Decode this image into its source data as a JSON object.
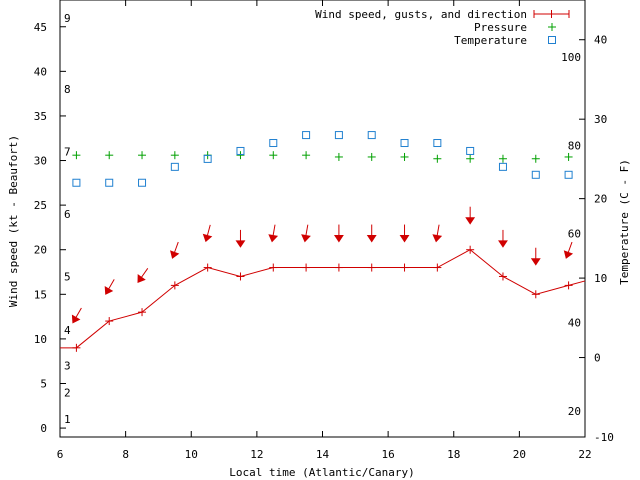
{
  "chart_data": {
    "type": "line",
    "xlabel": "Local time (Atlantic/Canary)",
    "ylabel": "Wind speed (kt - Beaufort)",
    "y2label": "Temperature (C - F)",
    "xlim": [
      6,
      22
    ],
    "ylim": [
      -1,
      48
    ],
    "y2lim": [
      -10,
      45
    ],
    "x_ticks": [
      6,
      8,
      10,
      12,
      14,
      16,
      18,
      20,
      22
    ],
    "y_ticks": [
      0,
      5,
      10,
      15,
      20,
      25,
      30,
      35,
      40,
      45
    ],
    "y2_ticks": [
      -10,
      0,
      10,
      20,
      30,
      40
    ],
    "beaufort_labels": [
      {
        "label": "1",
        "y": 1
      },
      {
        "label": "2",
        "y": 4
      },
      {
        "label": "3",
        "y": 7
      },
      {
        "label": "4",
        "y": 11
      },
      {
        "label": "5",
        "y": 17
      },
      {
        "label": "6",
        "y": 24
      },
      {
        "label": "7",
        "y": 31
      },
      {
        "label": "8",
        "y": 38
      },
      {
        "label": "9",
        "y": 46
      }
    ],
    "fahrenheit_labels": [
      {
        "label": "20",
        "t": -6.7
      },
      {
        "label": "40",
        "t": 4.4
      },
      {
        "label": "60",
        "t": 15.6
      },
      {
        "label": "80",
        "t": 26.7
      },
      {
        "label": "100",
        "t": 37.8
      }
    ],
    "legend": [
      {
        "label": "Wind speed, gusts, and direction",
        "color": "#d00000"
      },
      {
        "label": "Pressure",
        "color": "#00a000"
      },
      {
        "label": "Temperature",
        "color": "#2080d0"
      }
    ],
    "legend_position": "top-right",
    "series": [
      {
        "name": "Wind speed",
        "color": "#d00000",
        "x": [
          6,
          6.5,
          7.5,
          8.5,
          9.5,
          10.5,
          11.5,
          12.5,
          13.5,
          14.5,
          15.5,
          16.5,
          17.5,
          18.5,
          19.5,
          20.5,
          21.5,
          22
        ],
        "y": [
          9,
          9,
          12,
          13,
          16,
          18,
          17,
          18,
          18,
          18,
          18,
          18,
          18,
          20,
          17,
          15,
          16,
          16.5
        ]
      },
      {
        "name": "Wind direction",
        "color": "#d00000",
        "x": [
          6.5,
          7.5,
          8.5,
          9.5,
          10.5,
          11.5,
          12.5,
          13.5,
          14.5,
          15.5,
          16.5,
          17.5,
          18.5,
          19.5,
          20.5,
          21.5
        ],
        "y": [
          12.5,
          15.7,
          17,
          19.8,
          21.7,
          21.1,
          21.7,
          21.7,
          21.7,
          21.7,
          21.7,
          21.7,
          23.7,
          21.1,
          19.1,
          19.8
        ],
        "dir_deg": [
          30,
          30,
          35,
          20,
          15,
          0,
          10,
          10,
          0,
          0,
          0,
          10,
          0,
          0,
          0,
          20
        ]
      },
      {
        "name": "Pressure",
        "color": "#00a000",
        "x": [
          6.5,
          7.5,
          8.5,
          9.5,
          10.5,
          11.5,
          12.5,
          13.5,
          14.5,
          15.5,
          16.5,
          17.5,
          18.5,
          19.5,
          20.5,
          21.5
        ],
        "y": [
          30.6,
          30.6,
          30.6,
          30.6,
          30.6,
          30.6,
          30.6,
          30.6,
          30.4,
          30.4,
          30.4,
          30.2,
          30.2,
          30.2,
          30.2,
          30.4
        ]
      },
      {
        "name": "Temperature",
        "color": "#2080d0",
        "x": [
          6.5,
          7.5,
          8.5,
          9.5,
          10.5,
          11.5,
          12.5,
          13.5,
          14.5,
          15.5,
          16.5,
          17.5,
          18.5,
          19.5,
          20.5,
          21.5
        ],
        "t": [
          22,
          22,
          22,
          24,
          25,
          26,
          27,
          28,
          28,
          28,
          27,
          27,
          26,
          24,
          23,
          23
        ]
      }
    ]
  }
}
